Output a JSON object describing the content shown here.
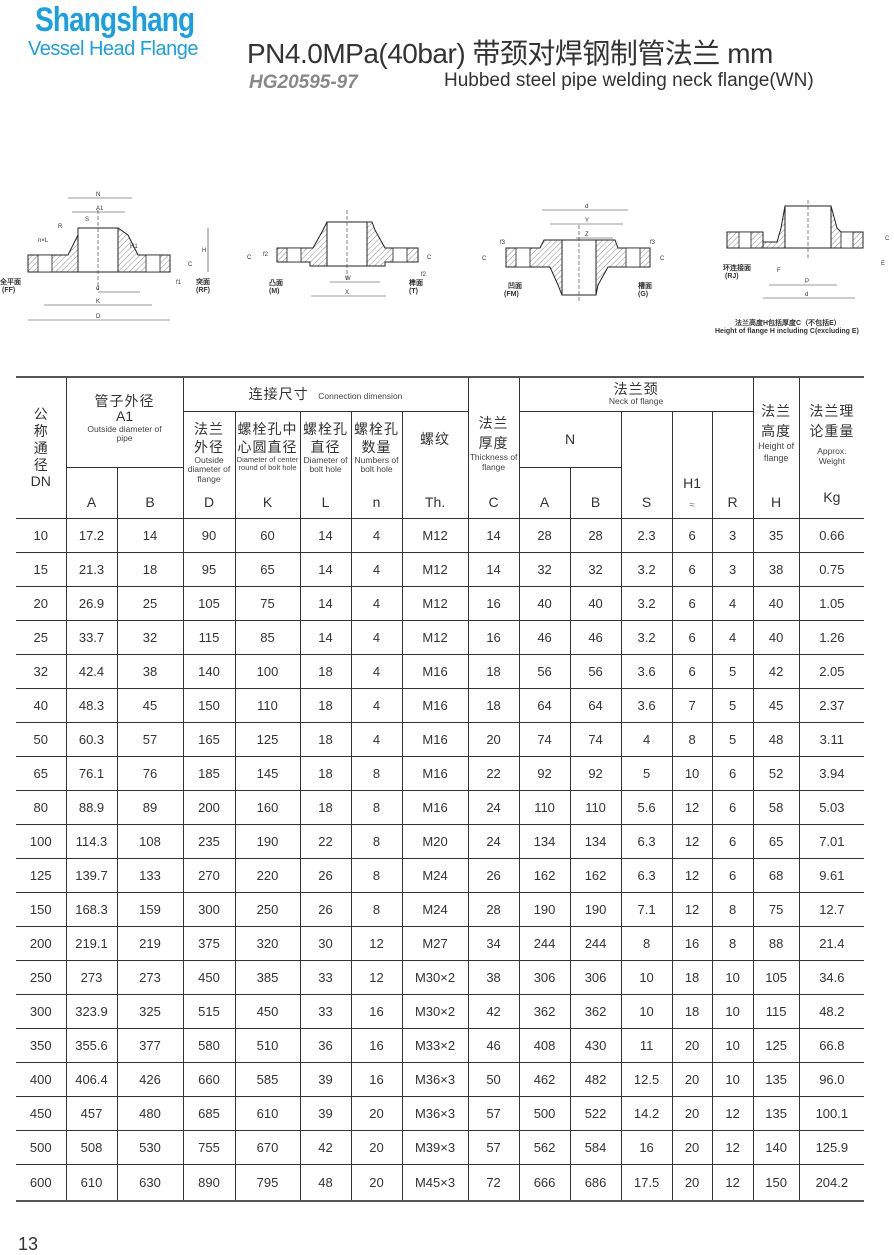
{
  "brand": {
    "name": "Shangshang",
    "tagline": "Vessel Head Flange"
  },
  "header": {
    "title": "PN4.0MPa(40bar) 带颈对焊钢制管法兰  mm",
    "standard": "HG20595-97",
    "subtitle": "Hubbed steel pipe welding neck flange(WN)"
  },
  "diagrams": {
    "ff": "全平面",
    "ff_code": "(FF)",
    "rf": "突面",
    "rf_code": "(RF)",
    "m": "凸面",
    "m_code": "(M)",
    "t": "榫面",
    "t_code": "(T)",
    "fm": "凹面",
    "fm_code": "(FM)",
    "g": "槽面",
    "g_code": "(G)",
    "rj": "环连接面",
    "rj_code": "(RJ)",
    "note_cn": "法兰高度H包括厚度C（不包括E）",
    "note_en": "Height of flange H including C(excluding E)",
    "dims": {
      "N": "N",
      "A1": "A1",
      "S": "S",
      "R": "R",
      "nL": "n×L",
      "H1": "H1",
      "H": "H",
      "C": "C",
      "f1": "f1",
      "d": "d",
      "K": "K",
      "D": "D",
      "W": "W",
      "X": "X",
      "f2": "f2",
      "f3": "f3",
      "Y": "Y",
      "Z": "Z",
      "E": "E",
      "F": "F",
      "P": "P"
    }
  },
  "table": {
    "headers": {
      "dn_cn": "公称通径",
      "dn": "DN",
      "pipe_cn": "管子外径",
      "pipe_sym": "A1",
      "pipe_en": "Outside diameter of pipe",
      "conn_cn": "连接尺寸",
      "conn_en": "Connection dimension",
      "d_cn": "法兰外径",
      "d_en": "Outside diameter of flange",
      "d": "D",
      "k_cn": "螺栓孔中心圆直径",
      "k_en": "Diameter of center round of bolt hole",
      "k": "K",
      "l_cn": "螺栓孔直径",
      "l_en": "Diameter of bolt hole",
      "l": "L",
      "n_cn": "螺栓孔数量",
      "n_en": "Numbers of bolt hole",
      "n": "n",
      "th_cn": "螺纹",
      "th": "Th.",
      "c_cn": "法兰厚度",
      "c_en": "Thickness of flange",
      "c": "C",
      "neck_cn": "法兰颈",
      "neck_en": "Neck of flange",
      "N": "N",
      "S": "S",
      "H1": "H1",
      "H1_approx": "≈",
      "R": "R",
      "h_cn": "法兰高度",
      "h_en": "Height of flange",
      "h": "H",
      "w_cn": "法兰理论重量",
      "w_en": "Approx. Weight",
      "w": "Kg",
      "A": "A",
      "B": "B"
    },
    "rows": [
      [
        "10",
        "17.2",
        "14",
        "90",
        "60",
        "14",
        "4",
        "M12",
        "14",
        "28",
        "28",
        "2.3",
        "6",
        "3",
        "35",
        "0.66"
      ],
      [
        "15",
        "21.3",
        "18",
        "95",
        "65",
        "14",
        "4",
        "M12",
        "14",
        "32",
        "32",
        "3.2",
        "6",
        "3",
        "38",
        "0.75"
      ],
      [
        "20",
        "26.9",
        "25",
        "105",
        "75",
        "14",
        "4",
        "M12",
        "16",
        "40",
        "40",
        "3.2",
        "6",
        "4",
        "40",
        "1.05"
      ],
      [
        "25",
        "33.7",
        "32",
        "115",
        "85",
        "14",
        "4",
        "M12",
        "16",
        "46",
        "46",
        "3.2",
        "6",
        "4",
        "40",
        "1.26"
      ],
      [
        "32",
        "42.4",
        "38",
        "140",
        "100",
        "18",
        "4",
        "M16",
        "18",
        "56",
        "56",
        "3.6",
        "6",
        "5",
        "42",
        "2.05"
      ],
      [
        "40",
        "48.3",
        "45",
        "150",
        "110",
        "18",
        "4",
        "M16",
        "18",
        "64",
        "64",
        "3.6",
        "7",
        "5",
        "45",
        "2.37"
      ],
      [
        "50",
        "60.3",
        "57",
        "165",
        "125",
        "18",
        "4",
        "M16",
        "20",
        "74",
        "74",
        "4",
        "8",
        "5",
        "48",
        "3.11"
      ],
      [
        "65",
        "76.1",
        "76",
        "185",
        "145",
        "18",
        "8",
        "M16",
        "22",
        "92",
        "92",
        "5",
        "10",
        "6",
        "52",
        "3.94"
      ],
      [
        "80",
        "88.9",
        "89",
        "200",
        "160",
        "18",
        "8",
        "M16",
        "24",
        "110",
        "110",
        "5.6",
        "12",
        "6",
        "58",
        "5.03"
      ],
      [
        "100",
        "114.3",
        "108",
        "235",
        "190",
        "22",
        "8",
        "M20",
        "24",
        "134",
        "134",
        "6.3",
        "12",
        "6",
        "65",
        "7.01"
      ],
      [
        "125",
        "139.7",
        "133",
        "270",
        "220",
        "26",
        "8",
        "M24",
        "26",
        "162",
        "162",
        "6.3",
        "12",
        "6",
        "68",
        "9.61"
      ],
      [
        "150",
        "168.3",
        "159",
        "300",
        "250",
        "26",
        "8",
        "M24",
        "28",
        "190",
        "190",
        "7.1",
        "12",
        "8",
        "75",
        "12.7"
      ],
      [
        "200",
        "219.1",
        "219",
        "375",
        "320",
        "30",
        "12",
        "M27",
        "34",
        "244",
        "244",
        "8",
        "16",
        "8",
        "88",
        "21.4"
      ],
      [
        "250",
        "273",
        "273",
        "450",
        "385",
        "33",
        "12",
        "M30×2",
        "38",
        "306",
        "306",
        "10",
        "18",
        "10",
        "105",
        "34.6"
      ],
      [
        "300",
        "323.9",
        "325",
        "515",
        "450",
        "33",
        "16",
        "M30×2",
        "42",
        "362",
        "362",
        "10",
        "18",
        "10",
        "115",
        "48.2"
      ],
      [
        "350",
        "355.6",
        "377",
        "580",
        "510",
        "36",
        "16",
        "M33×2",
        "46",
        "408",
        "430",
        "11",
        "20",
        "10",
        "125",
        "66.8"
      ],
      [
        "400",
        "406.4",
        "426",
        "660",
        "585",
        "39",
        "16",
        "M36×3",
        "50",
        "462",
        "482",
        "12.5",
        "20",
        "10",
        "135",
        "96.0"
      ],
      [
        "450",
        "457",
        "480",
        "685",
        "610",
        "39",
        "20",
        "M36×3",
        "57",
        "500",
        "522",
        "14.2",
        "20",
        "12",
        "135",
        "100.1"
      ],
      [
        "500",
        "508",
        "530",
        "755",
        "670",
        "42",
        "20",
        "M39×3",
        "57",
        "562",
        "584",
        "16",
        "20",
        "12",
        "140",
        "125.9"
      ],
      [
        "600",
        "610",
        "630",
        "890",
        "795",
        "48",
        "20",
        "M45×3",
        "72",
        "666",
        "686",
        "17.5",
        "20",
        "12",
        "150",
        "204.2"
      ]
    ]
  },
  "page_number": "13",
  "colors": {
    "brand": "#1aa0e0",
    "text": "#333333",
    "standard": "#888888"
  }
}
